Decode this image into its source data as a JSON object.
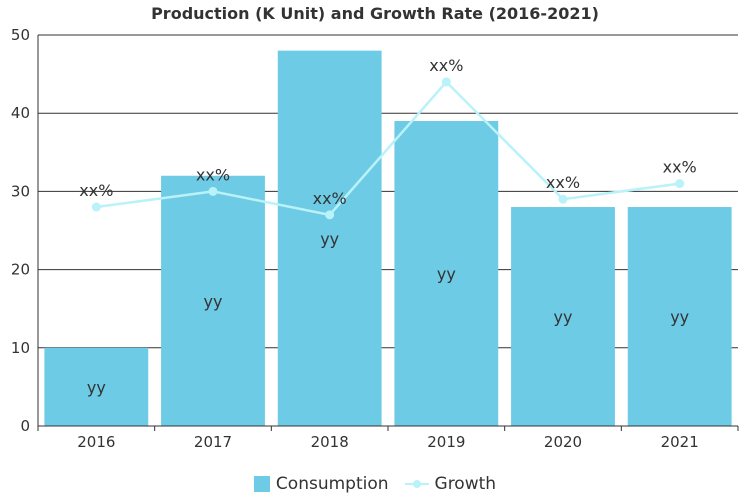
{
  "chart_data": {
    "type": "bar",
    "title": "Production (K Unit) and Growth Rate (2016-2021)",
    "categories": [
      "2016",
      "2017",
      "2018",
      "2019",
      "2020",
      "2021"
    ],
    "ylim": [
      0,
      50
    ],
    "yticks": [
      "0",
      "10",
      "20",
      "30",
      "40",
      "50"
    ],
    "grid": true,
    "legend_position": "bottom",
    "series": [
      {
        "name": "Consumption",
        "type": "bar",
        "values": [
          10,
          32,
          48,
          39,
          28,
          28
        ],
        "data_labels": [
          "yy",
          "yy",
          "yy",
          "yy",
          "yy",
          "yy"
        ],
        "color": "#6dcbe5"
      },
      {
        "name": "Growth",
        "type": "line",
        "values": [
          28,
          30,
          27,
          44,
          29,
          31
        ],
        "data_labels": [
          "xx%",
          "xx%",
          "xx%",
          "xx%",
          "xx%",
          "xx%"
        ],
        "color": "#b9f2f9"
      }
    ]
  }
}
